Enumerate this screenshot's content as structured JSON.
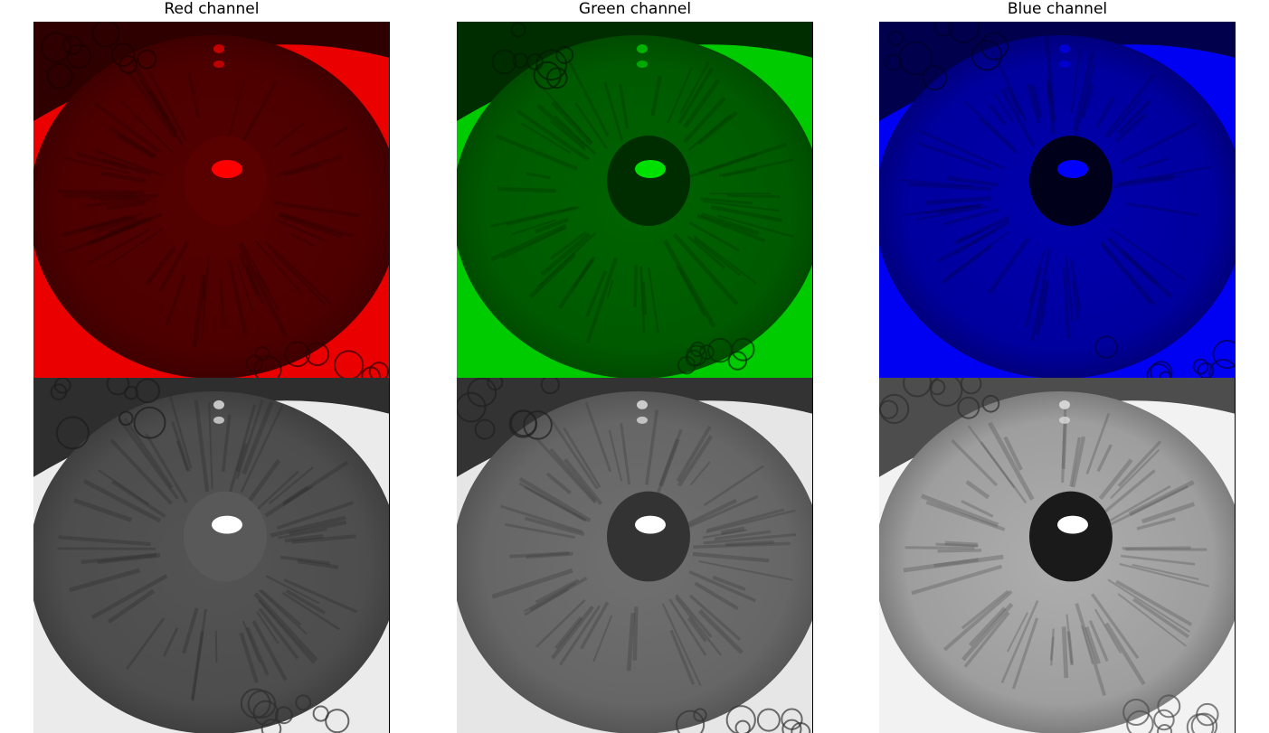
{
  "titles": {
    "red": "Red channel",
    "green": "Green channel",
    "blue": "Blue channel"
  },
  "colors": {
    "red": "#ff0000",
    "green": "#00e000",
    "blue": "#0000ff",
    "gray": "#ffffff"
  },
  "panels": [
    {
      "channel": "red",
      "row": "tinted",
      "content": "close-up eye image (red channel)"
    },
    {
      "channel": "green",
      "row": "tinted",
      "content": "close-up eye image (green channel)"
    },
    {
      "channel": "blue",
      "row": "tinted",
      "content": "close-up eye image (blue channel)"
    },
    {
      "channel": "red",
      "row": "grayscale",
      "content": "close-up eye image (red channel, grayscale)"
    },
    {
      "channel": "green",
      "row": "grayscale",
      "content": "close-up eye image (green channel, grayscale)"
    },
    {
      "channel": "blue",
      "row": "grayscale",
      "content": "close-up eye image (blue channel, grayscale)"
    }
  ]
}
